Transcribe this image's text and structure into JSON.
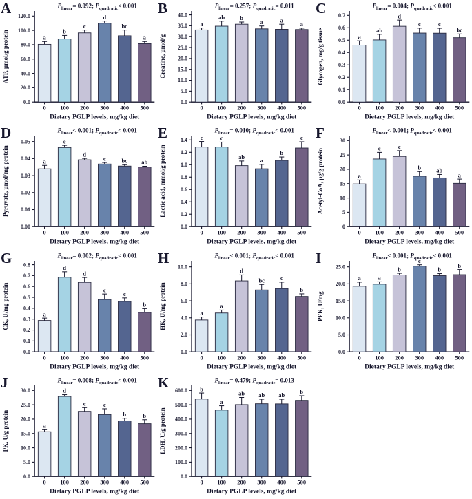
{
  "figure": {
    "xlabel": "Dietary PGLP levels, mg/kg diet",
    "categories": [
      "0",
      "100",
      "200",
      "300",
      "400",
      "500"
    ],
    "bar_colors": [
      "#dce7f2",
      "#a5d3e4",
      "#c6c3d8",
      "#6883ab",
      "#546590",
      "#716083"
    ],
    "ink_color": "#16162c",
    "background_color": "#ffffff"
  },
  "chart_data": [
    {
      "type": "bar",
      "panel": "A",
      "ylabel": "ATP, μmol/g protein",
      "p_linear": "= 0.092",
      "p_quadratic": "< 0.001",
      "categories": [
        "0",
        "100",
        "200",
        "300",
        "400",
        "500"
      ],
      "values": [
        80.5,
        88.0,
        96.5,
        110.0,
        92.5,
        81.5
      ],
      "errors": [
        4.0,
        5.0,
        4.0,
        3.0,
        8.0,
        3.0
      ],
      "letters": [
        "a",
        "b",
        "c",
        "d",
        "bc",
        "a"
      ],
      "ylim": [
        0,
        120
      ],
      "ytick_step": 20,
      "ytick_decimals": 1,
      "grid": false
    },
    {
      "type": "bar",
      "panel": "B",
      "ylabel": "Creatine, μmol/g",
      "p_linear": "= 0.257",
      "p_quadratic": "= 0.011",
      "categories": [
        "0",
        "100",
        "200",
        "300",
        "400",
        "500"
      ],
      "values": [
        33.1,
        34.8,
        35.7,
        33.6,
        33.4,
        33.3
      ],
      "errors": [
        0.9,
        2.3,
        1.0,
        1.3,
        2.3,
        0.6
      ],
      "letters": [
        "a",
        "ab",
        "b",
        "a",
        "a",
        "a"
      ],
      "ylim": [
        0,
        40
      ],
      "ytick_step": 5,
      "ytick_decimals": 1,
      "grid": false
    },
    {
      "type": "bar",
      "panel": "C",
      "ylabel": "Glycogen, mg/g tissue",
      "p_linear": "= 0.004",
      "p_quadratic": "< 0.001",
      "categories": [
        "0",
        "100",
        "200",
        "300",
        "400",
        "500"
      ],
      "values": [
        0.46,
        0.502,
        0.612,
        0.557,
        0.556,
        0.52
      ],
      "errors": [
        0.035,
        0.045,
        0.05,
        0.04,
        0.04,
        0.03
      ],
      "letters": [
        "a",
        "ab",
        "d",
        "c",
        "c",
        "bc"
      ],
      "ylim": [
        0,
        0.7
      ],
      "ytick_step": 0.1,
      "ytick_decimals": 1,
      "grid": false
    },
    {
      "type": "bar",
      "panel": "D",
      "ylabel": "Pyruvate, μmol/mg protein",
      "p_linear": "< 0.001",
      "p_quadratic": "< 0.001",
      "categories": [
        "0",
        "100",
        "200",
        "300",
        "400",
        "500"
      ],
      "values": [
        0.034,
        0.0465,
        0.0393,
        0.0368,
        0.0356,
        0.035
      ],
      "errors": [
        0.002,
        0.0013,
        0.0008,
        0.0009,
        0.0008,
        0.0005
      ],
      "letters": [
        "a",
        "e",
        "d",
        "c",
        "bc",
        "ab"
      ],
      "ylim": [
        0,
        0.05
      ],
      "ytick_step": 0.01,
      "ytick_decimals": 2,
      "grid": false
    },
    {
      "type": "bar",
      "panel": "E",
      "ylabel": "Lactic acid, mmol/g protein",
      "p_linear": "= 0.010",
      "p_quadratic": "< 0.001",
      "categories": [
        "0",
        "100",
        "200",
        "300",
        "400",
        "500"
      ],
      "values": [
        1.285,
        1.285,
        0.985,
        0.935,
        1.07,
        1.27
      ],
      "errors": [
        0.09,
        0.08,
        0.075,
        0.07,
        0.055,
        0.1
      ],
      "letters": [
        "c",
        "c",
        "ab",
        "a",
        "b",
        "c"
      ],
      "ylim": [
        0,
        1.4
      ],
      "ytick_step": 0.2,
      "ytick_decimals": 1,
      "grid": false
    },
    {
      "type": "bar",
      "panel": "F",
      "ylabel": "Acetyl-CoA, μg/g protein",
      "p_linear": "< 0.001",
      "p_quadratic": "< 0.001",
      "categories": [
        "0",
        "100",
        "200",
        "300",
        "400",
        "500"
      ],
      "values": [
        14.9,
        23.6,
        24.5,
        17.6,
        17.0,
        15.1
      ],
      "errors": [
        1.4,
        2.3,
        2.0,
        1.6,
        1.2,
        1.5
      ],
      "letters": [
        "a",
        "c",
        "c",
        "b",
        "ab",
        "a"
      ],
      "ylim": [
        0,
        30
      ],
      "ytick_step": 5,
      "ytick_decimals": 0,
      "grid": false
    },
    {
      "type": "bar",
      "panel": "G",
      "ylabel": "CK, U/mg protein",
      "p_linear": "= 0.002",
      "p_quadratic": "< 0.001",
      "categories": [
        "0",
        "100",
        "200",
        "300",
        "400",
        "500"
      ],
      "values": [
        0.288,
        0.685,
        0.638,
        0.481,
        0.463,
        0.362
      ],
      "errors": [
        0.022,
        0.05,
        0.045,
        0.05,
        0.032,
        0.035
      ],
      "letters": [
        "a",
        "d",
        "d",
        "c",
        "c",
        "b"
      ],
      "ylim": [
        0,
        0.8
      ],
      "ytick_step": 0.1,
      "ytick_decimals": 1,
      "grid": false
    },
    {
      "type": "bar",
      "panel": "H",
      "ylabel": "HK, U/mg protein",
      "p_linear": "< 0.001",
      "p_quadratic": "< 0.001",
      "categories": [
        "0",
        "100",
        "200",
        "300",
        "400",
        "500"
      ],
      "values": [
        3.75,
        4.57,
        8.35,
        7.28,
        7.45,
        6.52
      ],
      "errors": [
        0.35,
        0.35,
        0.7,
        0.65,
        0.75,
        0.3
      ],
      "letters": [
        "a",
        "a",
        "d",
        "bc",
        "c",
        "b"
      ],
      "ylim": [
        0,
        10
      ],
      "ytick_step": 2,
      "ytick_decimals": 1,
      "grid": false
    },
    {
      "type": "bar",
      "panel": "I",
      "ylabel": "PFK, U/mg",
      "p_linear": "< 0.001",
      "p_quadratic": "< 0.001",
      "categories": [
        "0",
        "100",
        "200",
        "300",
        "400",
        "500"
      ],
      "values": [
        19.3,
        19.9,
        22.6,
        25.2,
        22.4,
        22.7
      ],
      "errors": [
        1.2,
        0.7,
        0.5,
        0.4,
        0.6,
        1.5
      ],
      "letters": [
        "a",
        "a",
        "b",
        "c",
        "b",
        "b"
      ],
      "ylim": [
        0,
        25
      ],
      "ytick_step": 5,
      "ytick_decimals": 1,
      "grid": false
    },
    {
      "type": "bar",
      "panel": "J",
      "ylabel": "PK, U/g protein",
      "p_linear": "= 0.008",
      "p_quadratic": "< 0.001",
      "categories": [
        "0",
        "100",
        "200",
        "300",
        "400",
        "500"
      ],
      "values": [
        15.6,
        27.9,
        22.7,
        21.6,
        19.4,
        18.4
      ],
      "errors": [
        0.7,
        0.6,
        1.3,
        2.0,
        0.9,
        1.4
      ],
      "letters": [
        "a",
        "d",
        "c",
        "c",
        "b",
        "b"
      ],
      "ylim": [
        0,
        30
      ],
      "ytick_step": 5,
      "ytick_decimals": 1,
      "grid": false
    },
    {
      "type": "bar",
      "panel": "K",
      "ylabel": "LDH, U/g protein",
      "p_linear": "= 0.479",
      "p_quadratic": "= 0.013",
      "categories": [
        "0",
        "100",
        "200",
        "300",
        "400",
        "500"
      ],
      "values": [
        540,
        463,
        501,
        507,
        506,
        531
      ],
      "errors": [
        42,
        30,
        50,
        32,
        33,
        32
      ],
      "letters": [
        "b",
        "a",
        "ab",
        "ab",
        "ab",
        "b"
      ],
      "ylim": [
        0,
        600
      ],
      "ytick_step": 100,
      "ytick_decimals": 1,
      "grid": false
    }
  ]
}
